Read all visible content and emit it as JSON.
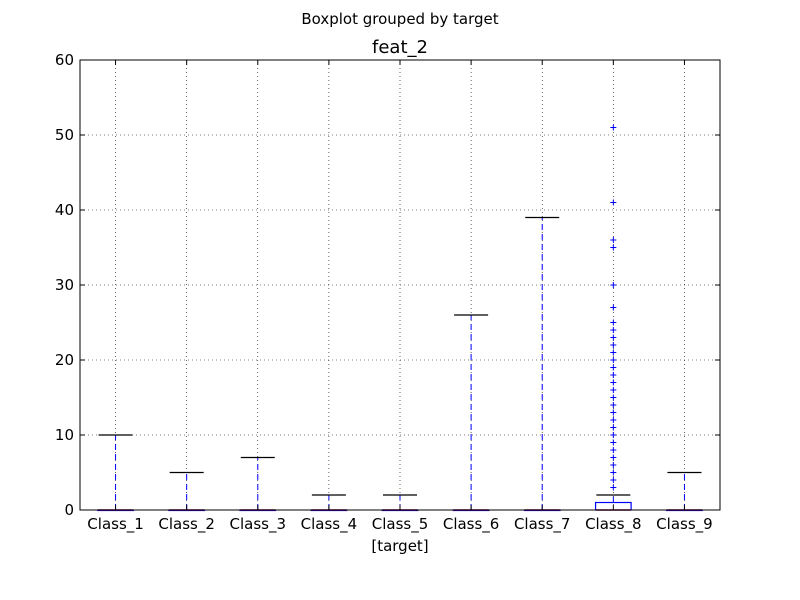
{
  "chart_data": {
    "type": "boxplot",
    "suptitle": "Boxplot grouped by target",
    "title": "feat_2",
    "xlabel": "[target]",
    "ylabel": "",
    "ylim": [
      0,
      60
    ],
    "yticks": [
      0,
      10,
      20,
      30,
      40,
      50,
      60
    ],
    "grid": true,
    "box_color": "#0000ff",
    "median_color": "#ff0000",
    "categories": [
      "Class_1",
      "Class_2",
      "Class_3",
      "Class_4",
      "Class_5",
      "Class_6",
      "Class_7",
      "Class_8",
      "Class_9"
    ],
    "boxes": [
      {
        "category": "Class_1",
        "q1": 0,
        "median": 0,
        "q3": 0,
        "whisker_low": 0,
        "whisker_high": 10,
        "outliers": []
      },
      {
        "category": "Class_2",
        "q1": 0,
        "median": 0,
        "q3": 0,
        "whisker_low": 0,
        "whisker_high": 5,
        "outliers": []
      },
      {
        "category": "Class_3",
        "q1": 0,
        "median": 0,
        "q3": 0,
        "whisker_low": 0,
        "whisker_high": 7,
        "outliers": []
      },
      {
        "category": "Class_4",
        "q1": 0,
        "median": 0,
        "q3": 0,
        "whisker_low": 0,
        "whisker_high": 2,
        "outliers": []
      },
      {
        "category": "Class_5",
        "q1": 0,
        "median": 0,
        "q3": 0,
        "whisker_low": 0,
        "whisker_high": 2,
        "outliers": []
      },
      {
        "category": "Class_6",
        "q1": 0,
        "median": 0,
        "q3": 0,
        "whisker_low": 0,
        "whisker_high": 26,
        "outliers": []
      },
      {
        "category": "Class_7",
        "q1": 0,
        "median": 0,
        "q3": 0,
        "whisker_low": 0,
        "whisker_high": 39,
        "outliers": []
      },
      {
        "category": "Class_8",
        "q1": 0,
        "median": 0,
        "q3": 1,
        "whisker_low": 0,
        "whisker_high": 2,
        "outliers": [
          3,
          4,
          5,
          6,
          7,
          8,
          9,
          10,
          11,
          12,
          13,
          14,
          15,
          16,
          17,
          18,
          19,
          20,
          21,
          22,
          23,
          24,
          25,
          27,
          30,
          35,
          36,
          41,
          51
        ]
      },
      {
        "category": "Class_9",
        "q1": 0,
        "median": 0,
        "q3": 0,
        "whisker_low": 0,
        "whisker_high": 5,
        "outliers": []
      }
    ]
  }
}
